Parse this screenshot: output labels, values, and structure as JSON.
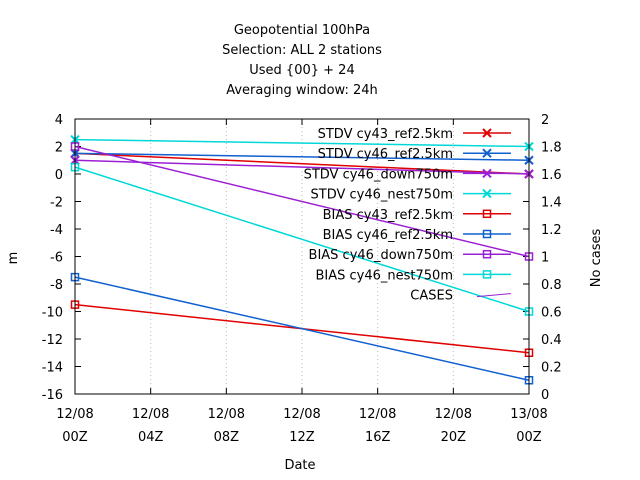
{
  "chart_data": {
    "type": "line",
    "title_lines": [
      "Geopotential 100hPa",
      "Selection: ALL      2 stations",
      "Used {00} + 24",
      "Averaging window: 24h"
    ],
    "xlabel": "Date",
    "ylabel": "m",
    "y2label": "No cases",
    "ylim": [
      -16,
      4
    ],
    "y2lim": [
      0,
      2
    ],
    "yticks": [
      "4",
      "2",
      "0",
      "-2",
      "-4",
      "-6",
      "-8",
      "-10",
      "-12",
      "-14",
      "-16"
    ],
    "y2ticks": [
      "2",
      "1.8",
      "1.6",
      "1.4",
      "1.2",
      "1",
      "0.8",
      "0.6",
      "0.4",
      "0.2",
      "0"
    ],
    "xticks": [
      {
        "line1": "12/08",
        "line2": "00Z"
      },
      {
        "line1": "12/08",
        "line2": "04Z"
      },
      {
        "line1": "12/08",
        "line2": "08Z"
      },
      {
        "line1": "12/08",
        "line2": "12Z"
      },
      {
        "line1": "12/08",
        "line2": "16Z"
      },
      {
        "line1": "12/08",
        "line2": "20Z"
      },
      {
        "line1": "13/08",
        "line2": "00Z"
      }
    ],
    "x_hours": [
      0,
      24
    ],
    "legend_position": "top-right",
    "series": [
      {
        "name": "STDV cy43_ref2.5km",
        "color": "#e00000",
        "marker": "x",
        "axis": "y",
        "values": [
          1.5,
          0.0
        ]
      },
      {
        "name": "STDV cy46_ref2.5km",
        "color": "#1060d0",
        "marker": "x",
        "axis": "y",
        "values": [
          1.5,
          1.0
        ]
      },
      {
        "name": "STDV cy46_down750m",
        "color": "#9b1fd4",
        "marker": "x",
        "axis": "y",
        "values": [
          1.0,
          0.0
        ]
      },
      {
        "name": "STDV cy46_nest750m",
        "color": "#00d8d8",
        "marker": "x",
        "axis": "y",
        "values": [
          2.5,
          2.0
        ]
      },
      {
        "name": "BIAS cy43_ref2.5km",
        "color": "#e00000",
        "marker": "square",
        "axis": "y",
        "values": [
          -9.5,
          -13.0
        ]
      },
      {
        "name": "BIAS cy46_ref2.5km",
        "color": "#1060d0",
        "marker": "square",
        "axis": "y",
        "values": [
          -7.5,
          -15.0
        ]
      },
      {
        "name": "BIAS cy46_down750m",
        "color": "#9b1fd4",
        "marker": "square",
        "axis": "y",
        "values": [
          2.0,
          -6.0
        ]
      },
      {
        "name": "BIAS cy46_nest750m",
        "color": "#00d8d8",
        "marker": "square",
        "axis": "y",
        "values": [
          0.5,
          -10.0
        ]
      },
      {
        "name": "CASES",
        "color": "#9b1fd4",
        "marker": "none",
        "axis": "y2",
        "values": [
          2,
          2
        ],
        "dashed": true
      }
    ]
  }
}
